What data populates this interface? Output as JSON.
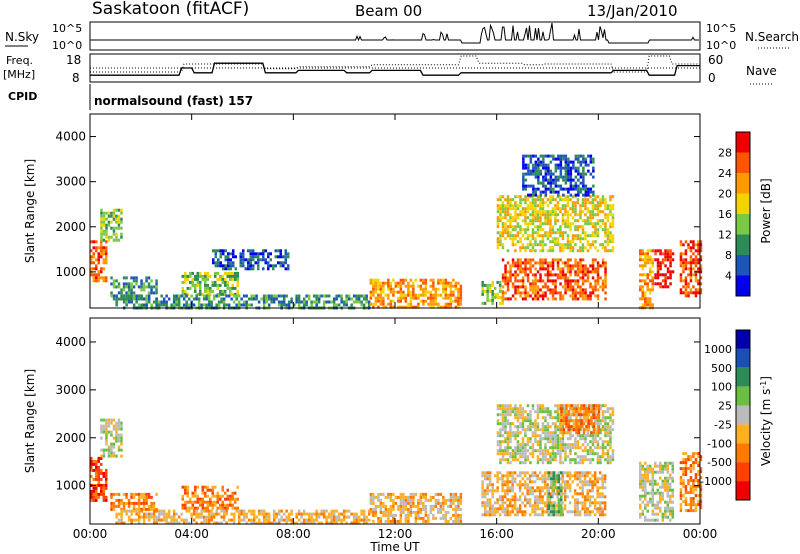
{
  "header": {
    "station": "Saskatoon (fitACF)",
    "beam": "Beam 00",
    "date": "13/Jan/2010"
  },
  "noise_panel": {
    "left_label": "N.Sky",
    "left_ticks": [
      "10^5",
      "10^0"
    ],
    "right_label": "N.Search",
    "right_ticks": [
      "10^5",
      "10^0"
    ]
  },
  "freq_panel": {
    "left_label_line1": "Freq.",
    "left_label_line2": "[MHz]",
    "left_ticks": [
      "18",
      "8"
    ],
    "right_label": "Nave",
    "right_ticks": [
      "60",
      "0"
    ]
  },
  "cpid": {
    "label": "CPID",
    "value": "normalsound (fast) 157"
  },
  "time_axis": {
    "label": "Time UT",
    "ticks": [
      "00:00",
      "04:00",
      "08:00",
      "12:00",
      "16:00",
      "20:00",
      "00:00"
    ]
  },
  "colors": {
    "power": [
      "#0000ee",
      "#1d55b8",
      "#2e8b57",
      "#7ac943",
      "#f2d400",
      "#ff9900",
      "#ff5500",
      "#ee0000"
    ],
    "velocity": [
      "#0000aa",
      "#1a4fb5",
      "#2e8b57",
      "#6abf40",
      "#bbbbbb",
      "#ffb020",
      "#ff7a00",
      "#ff4000",
      "#ee0000"
    ]
  },
  "chart_data": [
    {
      "type": "heatmap",
      "name": "power",
      "xlabel": "Time UT",
      "ylabel": "Slant Range [km]",
      "xlim_hours": [
        0,
        24
      ],
      "ylim_km": [
        200,
        4500
      ],
      "y_ticks": [
        "1000",
        "2000",
        "3000",
        "4000"
      ],
      "colorbar": {
        "label": "Power [dB]",
        "ticks": [
          "28",
          "24",
          "20",
          "16",
          "12",
          "8",
          "4"
        ]
      },
      "regions": [
        {
          "t0": 0.0,
          "t1": 0.6,
          "r0": 800,
          "r1": 1700,
          "level": 6
        },
        {
          "t0": 0.4,
          "t1": 1.2,
          "r0": 1700,
          "r1": 2400,
          "level": 3
        },
        {
          "t0": 0.8,
          "t1": 2.6,
          "r0": 400,
          "r1": 900,
          "level": 2
        },
        {
          "t0": 3.6,
          "t1": 5.8,
          "r0": 500,
          "r1": 1000,
          "level": 3
        },
        {
          "t0": 4.8,
          "t1": 7.8,
          "r0": 1100,
          "r1": 1500,
          "level": 1
        },
        {
          "t0": 1.0,
          "t1": 11.0,
          "r0": 200,
          "r1": 500,
          "level": 2
        },
        {
          "t0": 11.0,
          "t1": 14.6,
          "r0": 250,
          "r1": 850,
          "level": 5
        },
        {
          "t0": 15.4,
          "t1": 16.2,
          "r0": 300,
          "r1": 800,
          "level": 3
        },
        {
          "t0": 16.2,
          "t1": 20.3,
          "r0": 400,
          "r1": 1300,
          "level": 6
        },
        {
          "t0": 16.0,
          "t1": 20.6,
          "r0": 1500,
          "r1": 2700,
          "level": 4
        },
        {
          "t0": 17.0,
          "t1": 19.8,
          "r0": 2700,
          "r1": 3600,
          "level": 1
        },
        {
          "t0": 21.6,
          "t1": 22.1,
          "r0": 200,
          "r1": 1500,
          "level": 5
        },
        {
          "t0": 22.2,
          "t1": 22.9,
          "r0": 700,
          "r1": 1500,
          "level": 7
        },
        {
          "t0": 23.2,
          "t1": 24.0,
          "r0": 500,
          "r1": 1700,
          "level": 6
        }
      ]
    },
    {
      "type": "heatmap",
      "name": "velocity",
      "xlabel": "Time UT",
      "ylabel": "Slant Range [km]",
      "xlim_hours": [
        0,
        24
      ],
      "ylim_km": [
        200,
        4500
      ],
      "y_ticks": [
        "1000",
        "2000",
        "3000",
        "4000"
      ],
      "colorbar": {
        "label": "Velocity [m s^-1]",
        "ticks": [
          "1000",
          "500",
          "100",
          "25",
          "-25",
          "-100",
          "-500",
          "-1000"
        ]
      },
      "regions": [
        {
          "t0": 0.0,
          "t1": 0.6,
          "r0": 700,
          "r1": 1600,
          "level": 7
        },
        {
          "t0": 0.4,
          "t1": 1.2,
          "r0": 1600,
          "r1": 2400,
          "level": 4
        },
        {
          "t0": 0.8,
          "t1": 2.6,
          "r0": 500,
          "r1": 850,
          "level": 6
        },
        {
          "t0": 3.6,
          "t1": 5.8,
          "r0": 500,
          "r1": 1000,
          "level": 6
        },
        {
          "t0": 1.0,
          "t1": 11.0,
          "r0": 200,
          "r1": 500,
          "level": 5
        },
        {
          "t0": 11.0,
          "t1": 14.6,
          "r0": 250,
          "r1": 850,
          "level": 5
        },
        {
          "t0": 15.4,
          "t1": 20.3,
          "r0": 400,
          "r1": 1300,
          "level": 5
        },
        {
          "t0": 18.0,
          "t1": 18.5,
          "r0": 400,
          "r1": 1300,
          "level": 3
        },
        {
          "t0": 16.0,
          "t1": 20.6,
          "r0": 1500,
          "r1": 2700,
          "level": 4
        },
        {
          "t0": 18.5,
          "t1": 20.0,
          "r0": 2100,
          "r1": 2700,
          "level": 6
        },
        {
          "t0": 21.6,
          "t1": 22.9,
          "r0": 300,
          "r1": 1500,
          "level": 4
        },
        {
          "t0": 23.2,
          "t1": 24.0,
          "r0": 500,
          "r1": 1700,
          "level": 6
        }
      ]
    },
    {
      "type": "line",
      "name": "frequency",
      "unit": "MHz",
      "ylim": [
        8,
        18
      ],
      "x_hours": [
        0,
        3.5,
        3.6,
        4.0,
        4.1,
        4.8,
        4.9,
        6.8,
        6.9,
        8.1,
        8.2,
        10.0,
        10.1,
        11.0,
        11.1,
        13.0,
        13.1,
        14.5,
        14.6,
        20.5,
        20.6,
        21.9,
        22.0,
        23.0,
        23.1,
        24.0
      ],
      "values": [
        10,
        10,
        13,
        13,
        11,
        11,
        15,
        15,
        11,
        11,
        12,
        12,
        11,
        11,
        12,
        12,
        10,
        10,
        11,
        11,
        12,
        12,
        10,
        10,
        14,
        14
      ]
    },
    {
      "type": "line",
      "name": "nave",
      "ylim": [
        0,
        60
      ],
      "x_hours": [
        0,
        3.6,
        3.7,
        6.8,
        6.9,
        8.1,
        8.2,
        11.0,
        11.1,
        14.5,
        14.6,
        15.2,
        15.3,
        17.0,
        17.1,
        17.8,
        17.9,
        20.5,
        20.6,
        21.9,
        22.0,
        22.8,
        22.9,
        24.0
      ],
      "values": [
        20,
        20,
        40,
        40,
        28,
        28,
        33,
        33,
        38,
        38,
        60,
        60,
        42,
        42,
        38,
        38,
        40,
        40,
        20,
        20,
        60,
        60,
        40,
        40
      ]
    }
  ]
}
